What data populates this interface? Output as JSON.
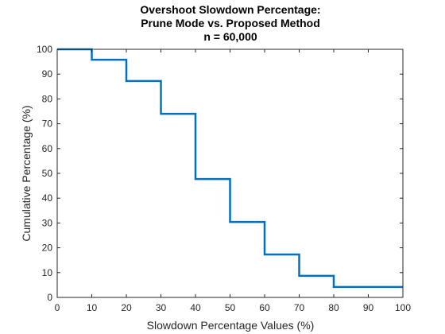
{
  "chart_data": {
    "type": "line",
    "title_lines": [
      "Overshoot Slowdown Percentage:",
      "Prune Mode vs. Proposed Method",
      "n = 60,000"
    ],
    "xlabel": "Slowdown Percentage Values (%)",
    "ylabel": "Cumulative Percentage (%)",
    "xlim": [
      0,
      100
    ],
    "ylim": [
      0,
      100
    ],
    "xticks": [
      0,
      10,
      20,
      30,
      40,
      50,
      60,
      70,
      80,
      90,
      100
    ],
    "yticks": [
      0,
      10,
      20,
      30,
      40,
      50,
      60,
      70,
      80,
      90,
      100
    ],
    "grid": false,
    "line_color": "#0072bd",
    "series": [
      {
        "type": "stairs",
        "x": [
          0,
          10,
          20,
          30,
          40,
          50,
          60,
          70,
          80,
          100
        ],
        "y": [
          100,
          95.8,
          87.2,
          74.0,
          47.7,
          30.4,
          17.3,
          8.7,
          4.2,
          4.2
        ]
      }
    ]
  }
}
